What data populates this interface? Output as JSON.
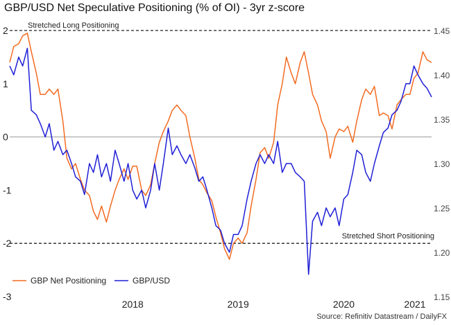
{
  "title": "GBP/USD Net Speculative Positioning (% of OI) - 3yr z-score",
  "source": "Source: Refinitiv Datastream / DailyFX",
  "annotations": {
    "long": "Stretched Long Positioning",
    "short": "Stretched Short Positioning"
  },
  "colors": {
    "net_positioning": "#f26b21",
    "gbpusd": "#1f1fd6",
    "reference": "#222222",
    "zero_line": "#999999"
  },
  "chart_data": {
    "type": "line",
    "x_ticks": [
      "2018",
      "2019",
      "2020",
      "2021"
    ],
    "xlim": [
      "2017-05",
      "2021-05"
    ],
    "left_axis": {
      "ylim": [
        -3,
        2
      ],
      "ticks": [
        "-3",
        "-2",
        "-1",
        "0",
        "1",
        "2"
      ]
    },
    "right_axis": {
      "ylim": [
        1.15,
        1.45
      ],
      "ticks": [
        "1.15",
        "1.20",
        "1.25",
        "1.30",
        "1.35",
        "1.40",
        "1.45"
      ]
    },
    "reference_lines": [
      {
        "value": 2,
        "axis": "left",
        "label": "Stretched Long Positioning"
      },
      {
        "value": 0,
        "axis": "left"
      },
      {
        "value": -2,
        "axis": "left",
        "label": "Stretched Short Positioning"
      }
    ],
    "legend": "bottom-left",
    "series": [
      {
        "name": "GBP Net Positioning",
        "axis": "left",
        "points": [
          [
            "2017-05-01",
            1.4
          ],
          [
            "2017-05-15",
            1.7
          ],
          [
            "2017-06-01",
            1.75
          ],
          [
            "2017-06-15",
            1.9
          ],
          [
            "2017-07-01",
            1.95
          ],
          [
            "2017-07-15",
            1.6
          ],
          [
            "2017-08-01",
            1.2
          ],
          [
            "2017-08-15",
            0.8
          ],
          [
            "2017-09-01",
            0.8
          ],
          [
            "2017-09-15",
            0.9
          ],
          [
            "2017-10-01",
            0.8
          ],
          [
            "2017-10-15",
            0.9
          ],
          [
            "2017-11-01",
            0.3
          ],
          [
            "2017-11-15",
            -0.4
          ],
          [
            "2017-12-01",
            -0.6
          ],
          [
            "2017-12-15",
            -0.5
          ],
          [
            "2018-01-01",
            -0.8
          ],
          [
            "2018-01-15",
            -1.0
          ],
          [
            "2018-02-01",
            -1.1
          ],
          [
            "2018-02-15",
            -1.4
          ],
          [
            "2018-03-01",
            -1.55
          ],
          [
            "2018-03-15",
            -1.3
          ],
          [
            "2018-04-01",
            -1.6
          ],
          [
            "2018-04-15",
            -1.3
          ],
          [
            "2018-05-01",
            -1.0
          ],
          [
            "2018-05-15",
            -0.8
          ],
          [
            "2018-06-01",
            -0.6
          ],
          [
            "2018-06-15",
            -0.8
          ],
          [
            "2018-07-01",
            -0.55
          ],
          [
            "2018-07-15",
            -0.55
          ],
          [
            "2018-08-01",
            -1.0
          ],
          [
            "2018-08-15",
            -1.1
          ],
          [
            "2018-09-01",
            -0.9
          ],
          [
            "2018-09-15",
            -0.5
          ],
          [
            "2018-10-01",
            -0.1
          ],
          [
            "2018-10-15",
            0.1
          ],
          [
            "2018-11-01",
            0.3
          ],
          [
            "2018-11-15",
            0.5
          ],
          [
            "2018-12-01",
            0.6
          ],
          [
            "2018-12-15",
            0.5
          ],
          [
            "2019-01-01",
            0.4
          ],
          [
            "2019-01-15",
            0.0
          ],
          [
            "2019-02-01",
            -0.4
          ],
          [
            "2019-02-15",
            -0.8
          ],
          [
            "2019-03-01",
            -0.9
          ],
          [
            "2019-03-15",
            -1.05
          ],
          [
            "2019-04-01",
            -1.2
          ],
          [
            "2019-04-15",
            -1.5
          ],
          [
            "2019-05-01",
            -1.8
          ],
          [
            "2019-05-15",
            -2.1
          ],
          [
            "2019-06-01",
            -2.3
          ],
          [
            "2019-06-15",
            -2.0
          ],
          [
            "2019-07-01",
            -1.9
          ],
          [
            "2019-07-15",
            -2.0
          ],
          [
            "2019-08-01",
            -1.8
          ],
          [
            "2019-08-15",
            -1.3
          ],
          [
            "2019-09-01",
            -0.8
          ],
          [
            "2019-09-15",
            -0.3
          ],
          [
            "2019-10-01",
            -0.2
          ],
          [
            "2019-10-15",
            -0.4
          ],
          [
            "2019-11-01",
            -0.1
          ],
          [
            "2019-11-15",
            0.6
          ],
          [
            "2019-12-01",
            1.0
          ],
          [
            "2019-12-15",
            1.5
          ],
          [
            "2020-01-01",
            1.2
          ],
          [
            "2020-01-15",
            1.0
          ],
          [
            "2020-02-01",
            1.4
          ],
          [
            "2020-02-15",
            1.6
          ],
          [
            "2020-03-01",
            1.2
          ],
          [
            "2020-03-15",
            0.8
          ],
          [
            "2020-04-01",
            0.6
          ],
          [
            "2020-04-15",
            0.3
          ],
          [
            "2020-05-01",
            0.1
          ],
          [
            "2020-05-15",
            -0.4
          ],
          [
            "2020-06-01",
            0.0
          ],
          [
            "2020-06-15",
            0.15
          ],
          [
            "2020-07-01",
            0.1
          ],
          [
            "2020-07-15",
            0.2
          ],
          [
            "2020-08-01",
            -0.1
          ],
          [
            "2020-08-15",
            0.3
          ],
          [
            "2020-09-01",
            0.7
          ],
          [
            "2020-09-15",
            0.9
          ],
          [
            "2020-10-01",
            0.8
          ],
          [
            "2020-10-15",
            0.95
          ],
          [
            "2020-11-01",
            0.4
          ],
          [
            "2020-11-15",
            0.45
          ],
          [
            "2020-12-01",
            0.4
          ],
          [
            "2020-12-15",
            0.15
          ],
          [
            "2021-01-01",
            0.6
          ],
          [
            "2021-01-15",
            0.7
          ],
          [
            "2021-02-01",
            0.8
          ],
          [
            "2021-02-15",
            0.8
          ],
          [
            "2021-03-01",
            1.1
          ],
          [
            "2021-03-15",
            1.2
          ],
          [
            "2021-04-01",
            1.6
          ],
          [
            "2021-04-15",
            1.45
          ],
          [
            "2021-05-01",
            1.4
          ]
        ]
      },
      {
        "name": "GBP/USD",
        "axis": "right",
        "points": [
          [
            "2017-05-01",
            1.41
          ],
          [
            "2017-05-15",
            1.4
          ],
          [
            "2017-06-01",
            1.42
          ],
          [
            "2017-06-15",
            1.41
          ],
          [
            "2017-07-01",
            1.43
          ],
          [
            "2017-07-15",
            1.36
          ],
          [
            "2017-08-01",
            1.355
          ],
          [
            "2017-08-15",
            1.345
          ],
          [
            "2017-09-01",
            1.33
          ],
          [
            "2017-09-15",
            1.345
          ],
          [
            "2017-10-01",
            1.315
          ],
          [
            "2017-10-15",
            1.325
          ],
          [
            "2017-11-01",
            1.31
          ],
          [
            "2017-11-15",
            1.315
          ],
          [
            "2017-12-01",
            1.3
          ],
          [
            "2017-12-15",
            1.285
          ],
          [
            "2018-01-01",
            1.28
          ],
          [
            "2018-01-15",
            1.265
          ],
          [
            "2018-02-01",
            1.3
          ],
          [
            "2018-02-15",
            1.29
          ],
          [
            "2018-03-01",
            1.31
          ],
          [
            "2018-03-15",
            1.285
          ],
          [
            "2018-04-01",
            1.3
          ],
          [
            "2018-04-15",
            1.28
          ],
          [
            "2018-05-01",
            1.315
          ],
          [
            "2018-05-15",
            1.3
          ],
          [
            "2018-06-01",
            1.28
          ],
          [
            "2018-06-15",
            1.3
          ],
          [
            "2018-07-01",
            1.27
          ],
          [
            "2018-07-15",
            1.26
          ],
          [
            "2018-08-01",
            1.27
          ],
          [
            "2018-08-15",
            1.25
          ],
          [
            "2018-09-01",
            1.27
          ],
          [
            "2018-09-15",
            1.3
          ],
          [
            "2018-10-01",
            1.27
          ],
          [
            "2018-10-15",
            1.3
          ],
          [
            "2018-11-01",
            1.34
          ],
          [
            "2018-11-15",
            1.31
          ],
          [
            "2018-12-01",
            1.32
          ],
          [
            "2018-12-15",
            1.31
          ],
          [
            "2019-01-01",
            1.3
          ],
          [
            "2019-01-15",
            1.31
          ],
          [
            "2019-02-01",
            1.295
          ],
          [
            "2019-02-15",
            1.28
          ],
          [
            "2019-03-01",
            1.285
          ],
          [
            "2019-03-15",
            1.27
          ],
          [
            "2019-04-01",
            1.25
          ],
          [
            "2019-04-15",
            1.23
          ],
          [
            "2019-05-01",
            1.225
          ],
          [
            "2019-05-15",
            1.21
          ],
          [
            "2019-06-01",
            1.2
          ],
          [
            "2019-06-15",
            1.22
          ],
          [
            "2019-07-01",
            1.22
          ],
          [
            "2019-07-15",
            1.23
          ],
          [
            "2019-08-01",
            1.26
          ],
          [
            "2019-08-15",
            1.28
          ],
          [
            "2019-09-01",
            1.3
          ],
          [
            "2019-09-15",
            1.31
          ],
          [
            "2019-10-01",
            1.3
          ],
          [
            "2019-10-15",
            1.31
          ],
          [
            "2019-11-01",
            1.3
          ],
          [
            "2019-11-15",
            1.325
          ],
          [
            "2019-12-01",
            1.29
          ],
          [
            "2019-12-15",
            1.3
          ],
          [
            "2020-01-01",
            1.3
          ],
          [
            "2020-01-15",
            1.29
          ],
          [
            "2020-02-01",
            1.285
          ],
          [
            "2020-02-15",
            1.28
          ],
          [
            "2020-03-01",
            1.175
          ],
          [
            "2020-03-15",
            1.235
          ],
          [
            "2020-04-01",
            1.245
          ],
          [
            "2020-04-15",
            1.23
          ],
          [
            "2020-05-01",
            1.25
          ],
          [
            "2020-05-15",
            1.24
          ],
          [
            "2020-06-01",
            1.25
          ],
          [
            "2020-06-15",
            1.23
          ],
          [
            "2020-07-01",
            1.26
          ],
          [
            "2020-07-15",
            1.265
          ],
          [
            "2020-08-01",
            1.29
          ],
          [
            "2020-08-15",
            1.315
          ],
          [
            "2020-09-01",
            1.31
          ],
          [
            "2020-09-15",
            1.29
          ],
          [
            "2020-10-01",
            1.28
          ],
          [
            "2020-10-15",
            1.3
          ],
          [
            "2020-11-01",
            1.32
          ],
          [
            "2020-11-15",
            1.335
          ],
          [
            "2020-12-01",
            1.34
          ],
          [
            "2020-12-15",
            1.355
          ],
          [
            "2021-01-01",
            1.36
          ],
          [
            "2021-01-15",
            1.37
          ],
          [
            "2021-02-01",
            1.39
          ],
          [
            "2021-02-15",
            1.39
          ],
          [
            "2021-03-01",
            1.41
          ],
          [
            "2021-03-15",
            1.4
          ],
          [
            "2021-04-01",
            1.39
          ],
          [
            "2021-04-15",
            1.385
          ],
          [
            "2021-05-01",
            1.375
          ]
        ]
      }
    ]
  }
}
